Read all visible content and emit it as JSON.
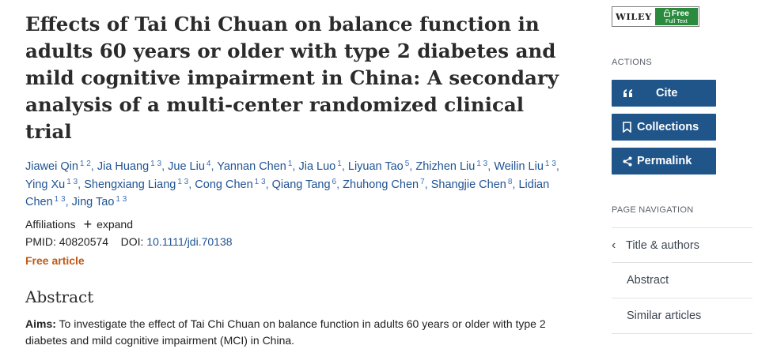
{
  "article": {
    "title": "Effects of Tai Chi Chuan on balance function in adults 60 years or older with type 2 diabetes and mild cognitive impairment in China: A secondary analysis of a multi-center randomized clinical trial",
    "authors": [
      {
        "name": "Jiawei Qin",
        "sup": "1 2"
      },
      {
        "name": "Jia Huang",
        "sup": "1 3"
      },
      {
        "name": "Jue Liu",
        "sup": "4"
      },
      {
        "name": "Yannan Chen",
        "sup": "1"
      },
      {
        "name": "Jia Luo",
        "sup": "1"
      },
      {
        "name": "Liyuan Tao",
        "sup": "5"
      },
      {
        "name": "Zhizhen Liu",
        "sup": "1 3"
      },
      {
        "name": "Weilin Liu",
        "sup": "1 3"
      },
      {
        "name": "Ying Xu",
        "sup": "1 3"
      },
      {
        "name": "Shengxiang Liang",
        "sup": "1 3"
      },
      {
        "name": "Cong Chen",
        "sup": "1 3"
      },
      {
        "name": "Qiang Tang",
        "sup": "6"
      },
      {
        "name": "Zhuhong Chen",
        "sup": "7"
      },
      {
        "name": "Shangjie Chen",
        "sup": "8"
      },
      {
        "name": "Lidian Chen",
        "sup": "1 3"
      },
      {
        "name": "Jing Tao",
        "sup": "1 3"
      }
    ],
    "affiliations_label": "Affiliations",
    "expand_label": "expand",
    "pmid_label": "PMID:",
    "pmid": "40820574",
    "doi_label": "DOI:",
    "doi": "10.1111/jdi.70138",
    "free_article": "Free article",
    "abstract_heading": "Abstract",
    "abstract_aims_label": "Aims:",
    "abstract_aims_text": "To investigate the effect of Tai Chi Chuan on balance function in adults 60 years or older with type 2 diabetes and mild cognitive impairment (MCI) in China."
  },
  "sidebar": {
    "publisher_name": "WILEY",
    "publisher_free": "Free",
    "publisher_full_text": "Full Text",
    "actions_label": "ACTIONS",
    "cite_label": "Cite",
    "collections_label": "Collections",
    "permalink_label": "Permalink",
    "page_nav_label": "PAGE NAVIGATION",
    "nav_items": [
      "Title & authors",
      "Abstract",
      "Similar articles"
    ]
  },
  "colors": {
    "link": "#205493",
    "button": "#20558a",
    "free_article": "#c05a15",
    "wiley_green": "#2a8a3e"
  },
  "icons": {
    "cite": "quote-icon",
    "collections": "bookmark-icon",
    "permalink": "share-icon",
    "nav_current": "chevron-left-icon",
    "expand": "plus-icon",
    "free_full_text": "lock-open-icon"
  }
}
